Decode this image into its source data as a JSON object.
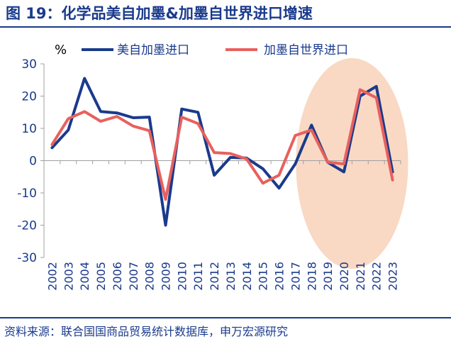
{
  "figure": {
    "title": "图 19：化学品美自加墨&加墨自世界进口增速",
    "source": "资料来源：联合国国商品贸易统计数据库，申万宏源研究"
  },
  "colors": {
    "title": "#1a3a8c",
    "series1": "#1a3a8c",
    "series2": "#e8605d",
    "highlight": "#f9d9c4",
    "axis_text": "#1a3a8c"
  },
  "chart_data": {
    "type": "line",
    "ylabel": "%",
    "ylim": [
      -30,
      30
    ],
    "yticks": [
      30,
      20,
      10,
      0,
      -10,
      -20,
      -30
    ],
    "legend_position": "top",
    "grid": false,
    "x": [
      "2002",
      "2003",
      "2004",
      "2005",
      "2006",
      "2007",
      "2008",
      "2009",
      "2010",
      "2011",
      "2012",
      "2013",
      "2014",
      "2015",
      "2016",
      "2017",
      "2018",
      "2019",
      "2020",
      "2021",
      "2022",
      "2023"
    ],
    "series": [
      {
        "name": "美自加墨进口",
        "color": "#1a3a8c",
        "values": [
          4,
          9.5,
          25.5,
          15.2,
          14.8,
          13.3,
          13.5,
          -20,
          16,
          15,
          -4.5,
          1,
          0.8,
          -2.5,
          -8.5,
          -1,
          11,
          -0.5,
          -3.5,
          20,
          23,
          -3.5
        ]
      },
      {
        "name": "加墨自世界进口",
        "color": "#e8605d",
        "values": [
          5,
          13,
          15.2,
          12.2,
          13.7,
          10.7,
          9.3,
          -12,
          13.5,
          11.5,
          2.5,
          2.2,
          0.5,
          -7,
          -4.5,
          7.8,
          9.5,
          -0.5,
          -1,
          22,
          19.5,
          -6
        ]
      }
    ],
    "highlight_range": [
      "2018",
      "2023"
    ]
  }
}
